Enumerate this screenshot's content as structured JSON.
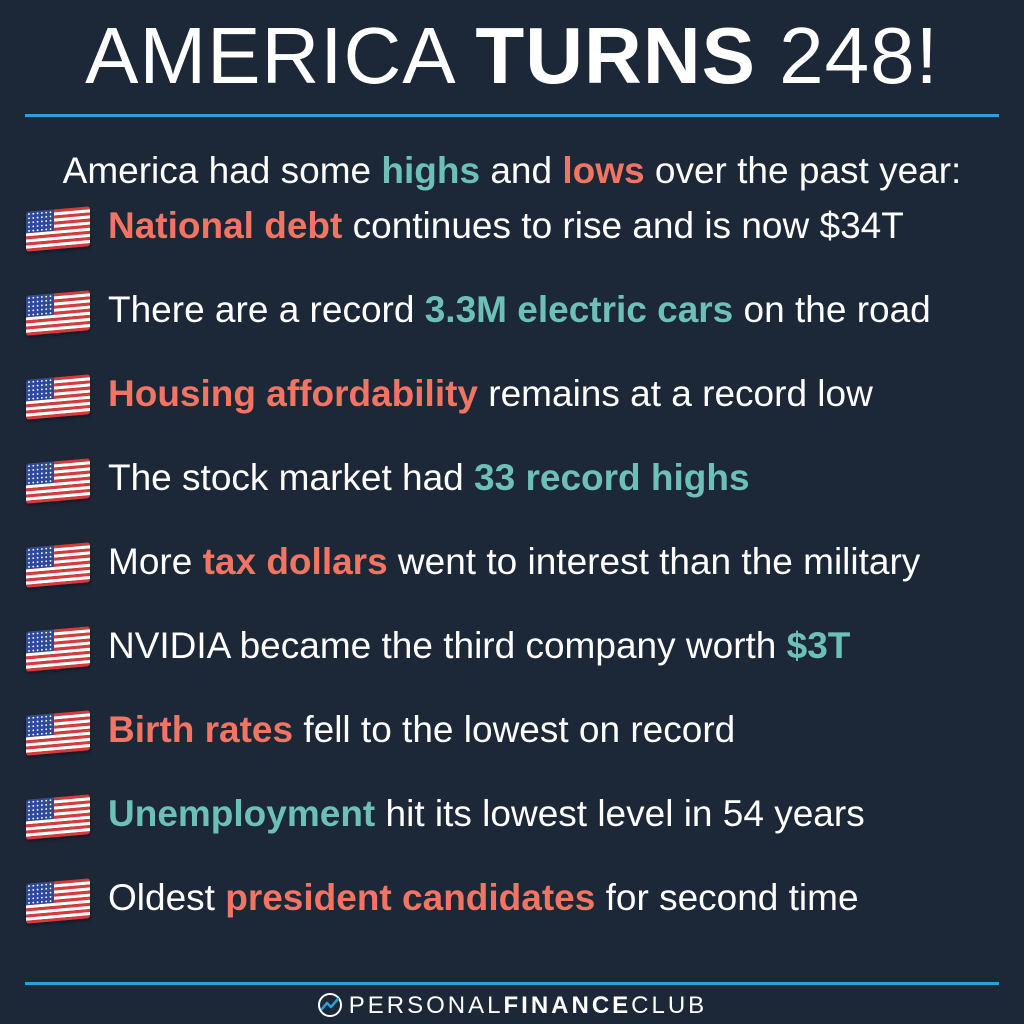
{
  "colors": {
    "background": "#1c2738",
    "high": "#6cc0b8",
    "low": "#f27563",
    "rule": "#2d9fd8",
    "text": "#ffffff"
  },
  "title": {
    "part1": "AMERICA ",
    "part2": "TURNS",
    "part3": " 248!"
  },
  "intro": {
    "before": "America had some ",
    "high": "highs",
    "middle": " and ",
    "low": "lows",
    "after": " over the past year:"
  },
  "items": [
    {
      "icon": "us-flag-icon",
      "segments": [
        {
          "text": "National debt",
          "style": "low"
        },
        {
          "text": " continues to rise and is now $34T",
          "style": "plain"
        }
      ]
    },
    {
      "icon": "us-flag-icon",
      "segments": [
        {
          "text": "There are a record ",
          "style": "plain"
        },
        {
          "text": "3.3M electric cars",
          "style": "high"
        },
        {
          "text": " on the road",
          "style": "plain"
        }
      ]
    },
    {
      "icon": "us-flag-icon",
      "segments": [
        {
          "text": "Housing affordability",
          "style": "low"
        },
        {
          "text": " remains at a record low",
          "style": "plain"
        }
      ]
    },
    {
      "icon": "us-flag-icon",
      "segments": [
        {
          "text": "The stock market had ",
          "style": "plain"
        },
        {
          "text": "33 record highs",
          "style": "high"
        }
      ]
    },
    {
      "icon": "us-flag-icon",
      "segments": [
        {
          "text": "More ",
          "style": "plain"
        },
        {
          "text": "tax dollars",
          "style": "low"
        },
        {
          "text": " went to interest than the military",
          "style": "plain"
        }
      ]
    },
    {
      "icon": "us-flag-icon",
      "segments": [
        {
          "text": "NVIDIA became the third company worth ",
          "style": "plain"
        },
        {
          "text": "$3T",
          "style": "high"
        }
      ]
    },
    {
      "icon": "us-flag-icon",
      "segments": [
        {
          "text": "Birth rates",
          "style": "low"
        },
        {
          "text": " fell to the lowest on record",
          "style": "plain"
        }
      ]
    },
    {
      "icon": "us-flag-icon",
      "segments": [
        {
          "text": "Unemployment",
          "style": "high"
        },
        {
          "text": " hit its lowest level in 54 years",
          "style": "plain"
        }
      ]
    },
    {
      "icon": "us-flag-icon",
      "segments": [
        {
          "text": "Oldest ",
          "style": "plain"
        },
        {
          "text": "president candidates",
          "style": "low"
        },
        {
          "text": " for second time",
          "style": "plain"
        }
      ]
    }
  ],
  "footer": {
    "logo_icon": "trend-line-logo-icon",
    "brand_part1": "PERSONAL",
    "brand_part2": "FINANCE",
    "brand_part3": "CLUB"
  }
}
